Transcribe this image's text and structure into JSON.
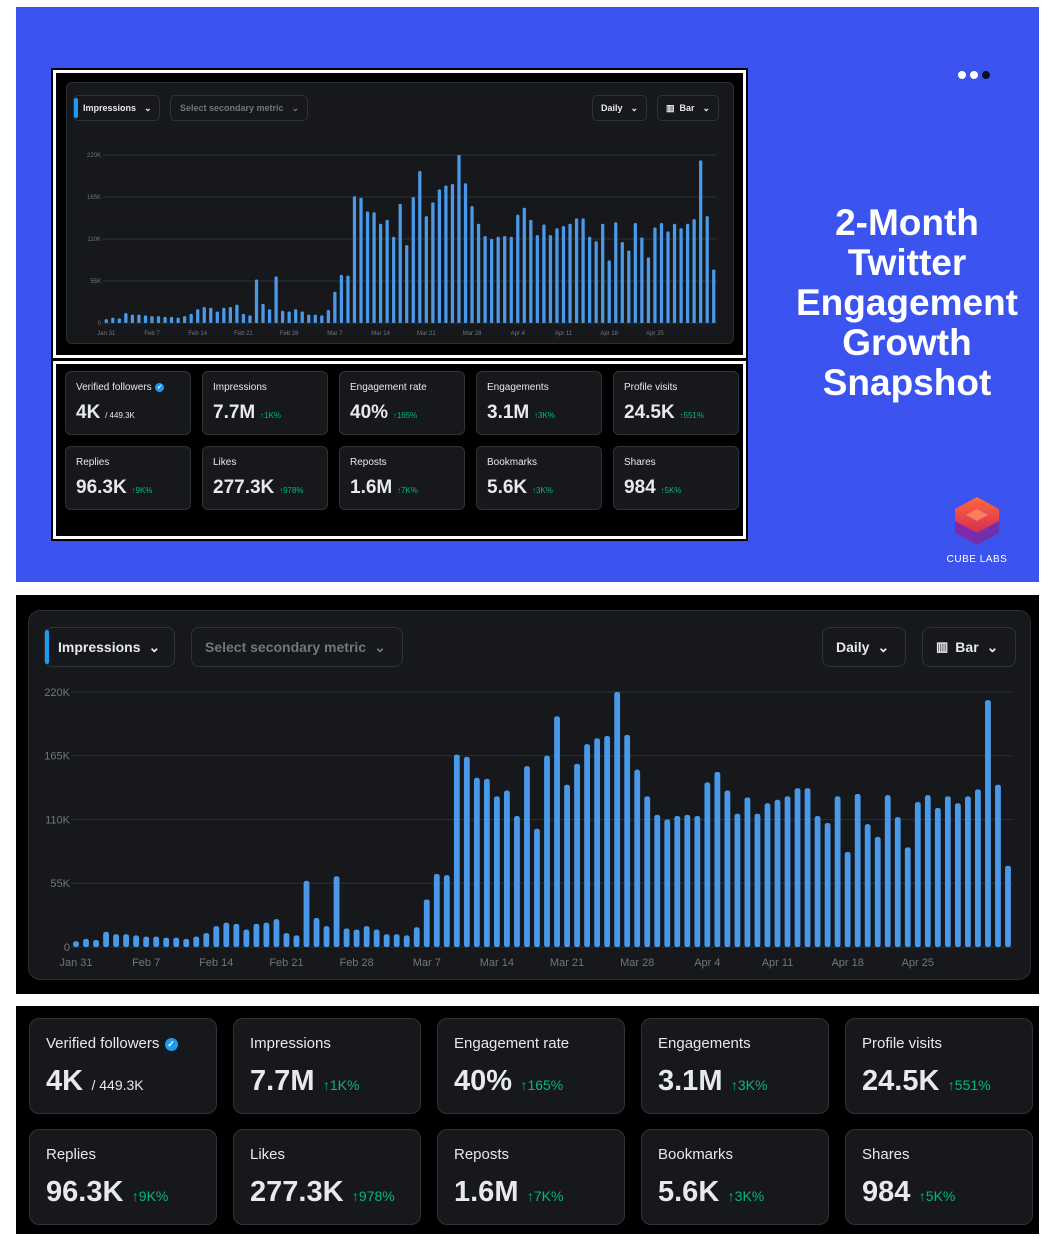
{
  "headline": [
    "2-Month",
    "Twitter",
    "Engagement",
    "Growth",
    "Snapshot"
  ],
  "brand": "CUBE LABS",
  "controls": {
    "primary_metric": "Impressions",
    "secondary_metric": "Select secondary metric",
    "interval": "Daily",
    "chart_type": "Bar"
  },
  "chart_data": {
    "type": "bar",
    "title": "",
    "series_name": "Impressions",
    "y_ticks": [
      "0",
      "55K",
      "110K",
      "165K",
      "220K"
    ],
    "ylim": [
      0,
      220000
    ],
    "x_tick_labels": [
      "Jan 31",
      "Feb 7",
      "Feb 14",
      "Feb 21",
      "Feb 28",
      "Mar 7",
      "Mar 14",
      "Mar 21",
      "Mar 28",
      "Apr 4",
      "Apr 11",
      "Apr 18",
      "Apr 25"
    ],
    "values": [
      5000,
      7000,
      6000,
      13000,
      11000,
      11000,
      10000,
      9000,
      9000,
      8000,
      8000,
      7000,
      9000,
      12000,
      18000,
      21000,
      20000,
      15000,
      20000,
      21000,
      24000,
      12000,
      10000,
      57000,
      25000,
      18000,
      61000,
      16000,
      15000,
      18000,
      15000,
      11000,
      11000,
      10000,
      17000,
      41000,
      63000,
      62000,
      166000,
      164000,
      146000,
      145000,
      130000,
      135000,
      113000,
      156000,
      102000,
      165000,
      199000,
      140000,
      158000,
      175000,
      180000,
      182000,
      220000,
      183000,
      153000,
      130000,
      114000,
      110000,
      113000,
      114000,
      113000,
      142000,
      151000,
      135000,
      115000,
      129000,
      115000,
      124000,
      127000,
      130000,
      137000,
      137000,
      113000,
      107000,
      130000,
      82000,
      132000,
      106000,
      95000,
      131000,
      112000,
      86000,
      125000,
      131000,
      120000,
      130000,
      124000,
      130000,
      136000,
      213000,
      140000,
      70000
    ],
    "value_color": "#4a99e9",
    "grid": true
  },
  "stats": [
    {
      "label": "Verified followers",
      "value": "4K",
      "sub": "/ 449.3K",
      "delta": "",
      "verified": true
    },
    {
      "label": "Impressions",
      "value": "7.7M",
      "sub": "",
      "delta": "↑1K%",
      "verified": false
    },
    {
      "label": "Engagement rate",
      "value": "40%",
      "sub": "",
      "delta": "↑165%",
      "verified": false
    },
    {
      "label": "Engagements",
      "value": "3.1M",
      "sub": "",
      "delta": "↑3K%",
      "verified": false
    },
    {
      "label": "Profile visits",
      "value": "24.5K",
      "sub": "",
      "delta": "↑551%",
      "verified": false
    },
    {
      "label": "Replies",
      "value": "96.3K",
      "sub": "",
      "delta": "↑9K%",
      "verified": false
    },
    {
      "label": "Likes",
      "value": "277.3K",
      "sub": "",
      "delta": "↑978%",
      "verified": false
    },
    {
      "label": "Reposts",
      "value": "1.6M",
      "sub": "",
      "delta": "↑7K%",
      "verified": false
    },
    {
      "label": "Bookmarks",
      "value": "5.6K",
      "sub": "",
      "delta": "↑3K%",
      "verified": false
    },
    {
      "label": "Shares",
      "value": "984",
      "sub": "",
      "delta": "↑5K%",
      "verified": false
    }
  ],
  "colors": {
    "banner": "#3c54ef",
    "accent": "#1d9bf0",
    "positive": "#00ba7c",
    "bar": "#4a99e9"
  }
}
